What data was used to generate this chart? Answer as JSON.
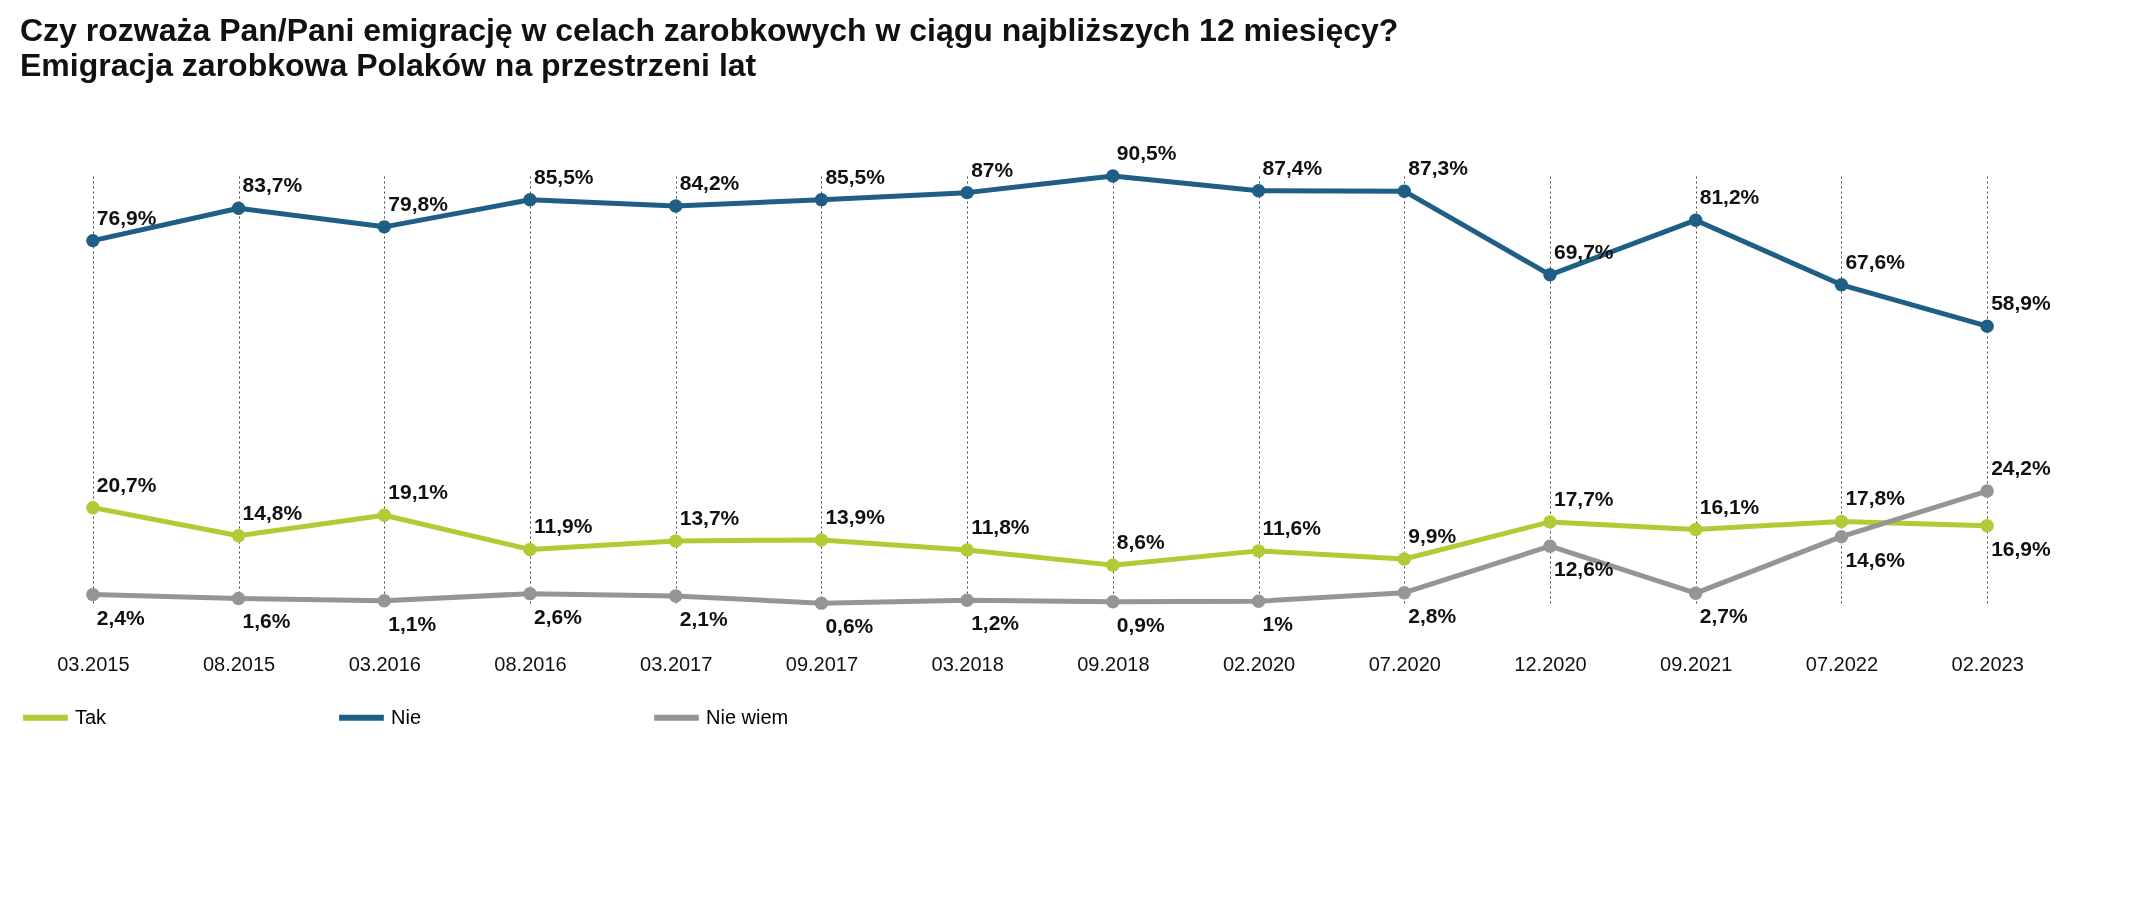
{
  "chart_data": {
    "type": "line",
    "title": "Czy rozważa Pan/Pani emigrację w celach zarobkowych w ciągu najbliższych 12 miesięcy?",
    "subtitle": "Emigracja zarobkowa Polaków na przestrzeni lat",
    "categories": [
      "03.2015",
      "08.2015",
      "03.2016",
      "08.2016",
      "03.2017",
      "09.2017",
      "03.2018",
      "09.2018",
      "02.2020",
      "07.2020",
      "12.2020",
      "09.2021",
      "07.2022",
      "02.2023"
    ],
    "series": [
      {
        "name": "Tak",
        "color": "#b5c934",
        "values": [
          20.7,
          14.8,
          19.1,
          11.9,
          13.7,
          13.9,
          11.8,
          8.6,
          11.6,
          9.9,
          17.7,
          16.1,
          17.8,
          16.9
        ],
        "value_labels": [
          "20,7%",
          "14,8%",
          "19,1%",
          "11,9%",
          "13,7%",
          "13,9%",
          "11,8%",
          "8,6%",
          "11,6%",
          "9,9%",
          "17,7%",
          "16,1%",
          "17,8%",
          "16,9%"
        ]
      },
      {
        "name": "Nie",
        "color": "#1f5f86",
        "values": [
          76.9,
          83.7,
          79.8,
          85.5,
          84.2,
          85.5,
          87,
          90.5,
          87.4,
          87.3,
          69.7,
          81.2,
          67.6,
          58.9
        ],
        "value_labels": [
          "76,9%",
          "83,7%",
          "79,8%",
          "85,5%",
          "84,2%",
          "85,5%",
          "87%",
          "90,5%",
          "87,4%",
          "87,3%",
          "69,7%",
          "81,2%",
          "67,6%",
          "58,9%"
        ]
      },
      {
        "name": "Nie wiem",
        "color": "#959595",
        "values": [
          2.4,
          1.6,
          1.1,
          2.6,
          2.1,
          0.6,
          1.2,
          0.9,
          1,
          2.8,
          12.6,
          2.7,
          14.6,
          24.2
        ],
        "value_labels": [
          "2,4%",
          "1,6%",
          "1,1%",
          "2,6%",
          "2,1%",
          "0,6%",
          "1,2%",
          "0,9%",
          "1%",
          "2,8%",
          "12,6%",
          "2,7%",
          "14,6%",
          "24,2%"
        ]
      }
    ],
    "grid": "x",
    "legend": "bottom",
    "marker": "circle",
    "line_style": "solid"
  }
}
